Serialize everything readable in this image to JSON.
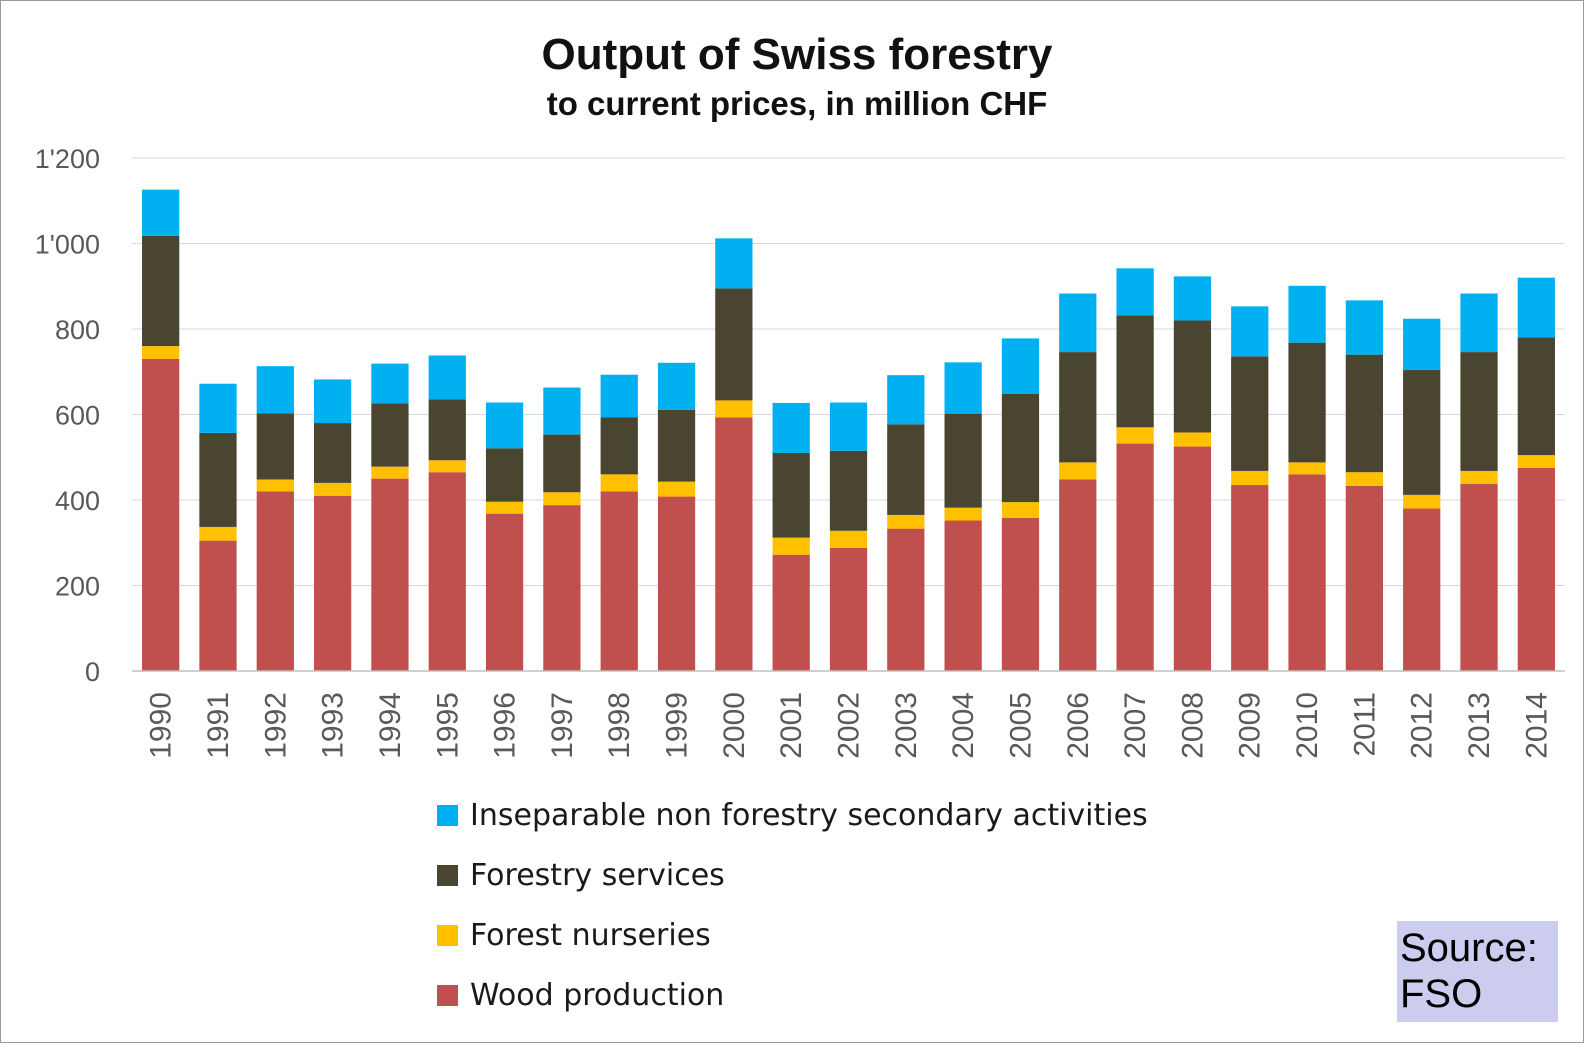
{
  "chart_data": {
    "type": "bar",
    "stacked": true,
    "title": "Output of Swiss forestry",
    "subtitle": "to current prices, in million CHF",
    "categories": [
      "1990",
      "1991",
      "1992",
      "1993",
      "1994",
      "1995",
      "1996",
      "1997",
      "1998",
      "1999",
      "2000",
      "2001",
      "2002",
      "2003",
      "2004",
      "2005",
      "2006",
      "2007",
      "2008",
      "2009",
      "2010",
      "2011",
      "2012",
      "2013",
      "2014"
    ],
    "series": [
      {
        "name": "Wood production",
        "color": "#c0504d",
        "values": [
          730,
          305,
          420,
          410,
          450,
          465,
          368,
          388,
          420,
          408,
          593,
          272,
          288,
          333,
          352,
          358,
          448,
          532,
          525,
          435,
          460,
          433,
          380,
          438,
          475
        ]
      },
      {
        "name": "Forest nurseries",
        "color": "#ffc000",
        "values": [
          30,
          32,
          28,
          30,
          28,
          28,
          28,
          30,
          40,
          35,
          40,
          40,
          40,
          32,
          30,
          37,
          40,
          38,
          33,
          33,
          28,
          32,
          32,
          30,
          30
        ]
      },
      {
        "name": "Forestry services",
        "color": "#4a4530",
        "values": [
          258,
          220,
          155,
          140,
          148,
          142,
          125,
          135,
          133,
          168,
          262,
          198,
          187,
          212,
          220,
          253,
          258,
          262,
          262,
          268,
          280,
          275,
          292,
          278,
          275
        ]
      },
      {
        "name": "Inseparable non forestry secondary activities",
        "color": "#00b0f0",
        "values": [
          108,
          115,
          110,
          102,
          93,
          103,
          107,
          110,
          100,
          110,
          117,
          117,
          113,
          115,
          120,
          130,
          137,
          110,
          103,
          117,
          133,
          127,
          120,
          137,
          140
        ]
      }
    ],
    "ylim": [
      0,
      1200
    ],
    "yticks": [
      0,
      200,
      400,
      600,
      800,
      1000,
      1200
    ],
    "ytick_labels": [
      "0",
      "200",
      "400",
      "600",
      "800",
      "1'000",
      "1'200"
    ],
    "grid": true,
    "legend_position": "bottom",
    "legend_order": [
      "Inseparable non forestry secondary activities",
      "Forestry services",
      "Forest nurseries",
      "Wood production"
    ],
    "source_note": "Source: FSO"
  }
}
